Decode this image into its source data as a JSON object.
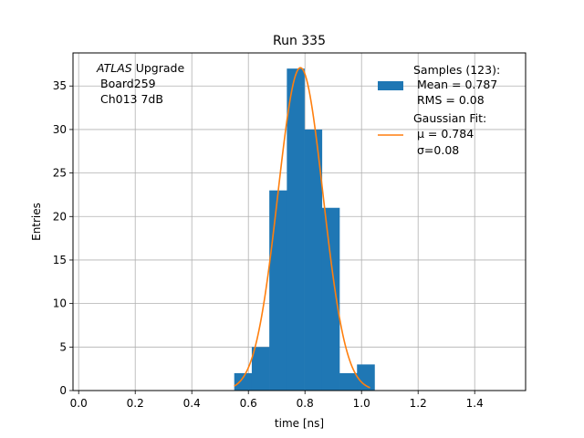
{
  "chart_data": {
    "type": "bar",
    "title": "Run 335",
    "xlabel": "time [ns]",
    "ylabel": "Entries",
    "xlim": [
      -0.02,
      1.58
    ],
    "ylim": [
      0,
      38.8
    ],
    "xticks": [
      0.0,
      0.2,
      0.4,
      0.6,
      0.8,
      1.0,
      1.2,
      1.4
    ],
    "xtick_labels": [
      "0.0",
      "0.2",
      "0.4",
      "0.6",
      "0.8",
      "1.0",
      "1.2",
      "1.4"
    ],
    "yticks": [
      0,
      5,
      10,
      15,
      20,
      25,
      30,
      35
    ],
    "ytick_labels": [
      "0",
      "5",
      "10",
      "15",
      "20",
      "25",
      "30",
      "35"
    ],
    "grid": true,
    "legend_placement": "top-right",
    "histogram": {
      "name_lines": [
        "Samples (123):",
        "Mean = 0.787",
        "RMS = 0.08"
      ],
      "color": "#1f77b4",
      "bin_edges": [
        0.55,
        0.612,
        0.674,
        0.736,
        0.798,
        0.86,
        0.922,
        0.984,
        1.046
      ],
      "counts": [
        2,
        5,
        23,
        37,
        30,
        21,
        2,
        3
      ]
    },
    "fit": {
      "name_lines": [
        "Gaussian Fit:",
        "μ = 0.784",
        "σ=0.08"
      ],
      "color": "#ff7f0e",
      "mu": 0.784,
      "sigma": 0.08,
      "amplitude": 37.1,
      "x_range": [
        0.55,
        1.03
      ]
    },
    "annotation": {
      "line1_italic": "ATLAS",
      "line1_rest": " Upgrade",
      "line2": "Board259",
      "line3": "Ch013 7dB"
    }
  }
}
